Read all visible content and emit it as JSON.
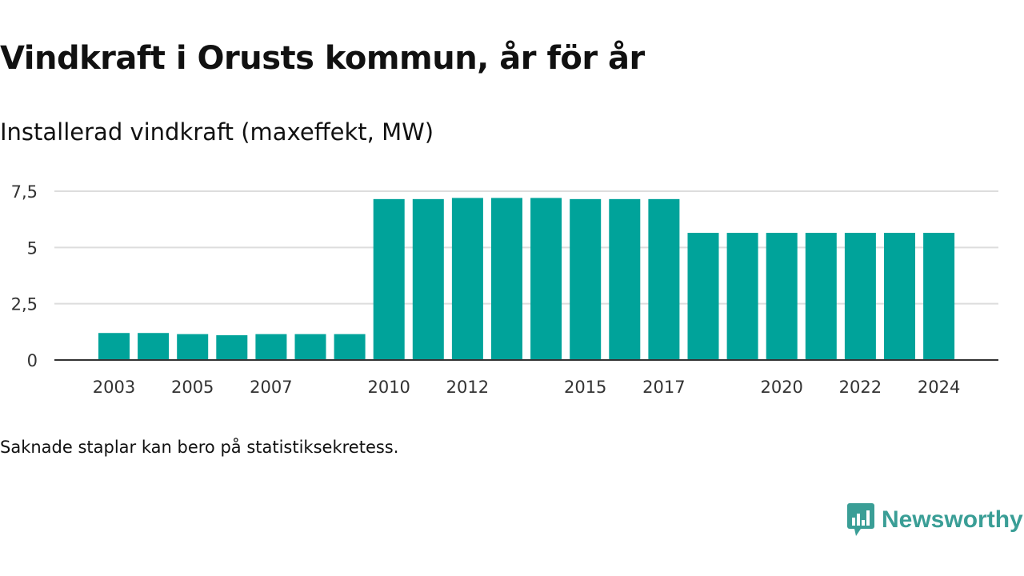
{
  "title": "Vindkraft i Orusts kommun, år för år",
  "subtitle": "Installerad vindkraft (maxeffekt, MW)",
  "note": "Saknade staplar kan bero på statistiksekretess.",
  "brand": {
    "name": "Newsworthy",
    "icon": "newsworthy-logo-icon",
    "color": "#3a9e96"
  },
  "colors": {
    "bar": "#00a39a",
    "grid": "#dddddd",
    "axis": "#333333"
  },
  "chart_data": {
    "type": "bar",
    "categories": [
      "2003",
      "2004",
      "2005",
      "2006",
      "2007",
      "2008",
      "2009",
      "2010",
      "2011",
      "2012",
      "2013",
      "2014",
      "2015",
      "2016",
      "2017",
      "2018",
      "2019",
      "2020",
      "2021",
      "2022",
      "2023",
      "2024"
    ],
    "values": [
      1.2,
      1.2,
      1.15,
      1.1,
      1.15,
      1.15,
      1.15,
      7.15,
      7.15,
      7.2,
      7.2,
      7.2,
      7.15,
      7.15,
      7.15,
      5.65,
      5.65,
      5.65,
      5.65,
      5.65,
      5.65,
      5.65
    ],
    "x_tick_labels": [
      "2003",
      "2005",
      "2007",
      "2010",
      "2012",
      "2015",
      "2017",
      "2020",
      "2022",
      "2024"
    ],
    "y_ticks": [
      0,
      2.5,
      5,
      7.5
    ],
    "y_tick_labels": [
      "0",
      "2,5",
      "5",
      "7,5"
    ],
    "ylim": [
      0,
      7.5
    ],
    "grid": true,
    "legend": "none",
    "xlabel": "",
    "ylabel": ""
  }
}
